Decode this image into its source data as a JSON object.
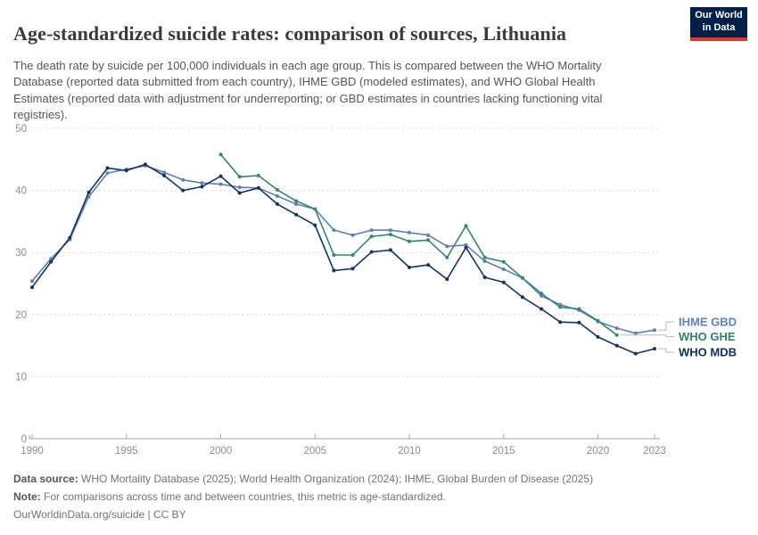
{
  "header": {
    "title": "Age-standardized suicide rates: comparison of sources, Lithuania",
    "subtitle": "The death rate by suicide per 100,000 individuals in each age group. This is compared between the WHO Mortality Database (reported data submitted from each country), IHME GBD (modeled estimates), and WHO Global Health Estimates (reported data with adjustment for underreporting; or GBD estimates in countries lacking functioning vital registries).",
    "logo": {
      "line1": "Our World",
      "line2": "in Data",
      "bg_color": "#002147",
      "accent_color": "#d93a2c"
    }
  },
  "footer": {
    "source_label": "Data source:",
    "source_text": " WHO Mortality Database (2025); World Health Organization (2024); IHME, Global Burden of Disease (2025)",
    "note_label": "Note:",
    "note_text": " For comparisons across time and between countries, this metric is age-standardized.",
    "link_text": "OurWorldinData.org/suicide | CC BY"
  },
  "chart_data": {
    "type": "line",
    "title": "Age-standardized suicide rates: comparison of sources, Lithuania",
    "xlabel": "",
    "ylabel": "Death rate by suicide per 100,000 individuals",
    "x_range": [
      1990,
      2023
    ],
    "x_interval": 1,
    "ylim": [
      0,
      50
    ],
    "yticks": [
      0,
      10,
      20,
      30,
      40,
      50
    ],
    "xticks": [
      1990,
      1995,
      2000,
      2005,
      2010,
      2015,
      2020,
      2023
    ],
    "grid": "dashed horizontal gridlines, legend at right line-ends",
    "series": [
      {
        "name": "IHME GBD",
        "color": "#5e7fba",
        "start_year": 1990,
        "values": [
          25.4,
          29.0,
          32.1,
          39.0,
          42.8,
          43.4,
          44.0,
          42.9,
          41.7,
          41.2,
          41.0,
          40.5,
          40.4,
          39.1,
          37.8,
          37.0,
          33.6,
          32.8,
          33.6,
          33.6,
          33.2,
          32.8,
          31.0,
          31.2,
          28.6,
          27.3,
          25.9,
          23.0,
          21.6,
          20.7,
          18.9,
          17.8,
          17.0,
          17.5
        ]
      },
      {
        "name": "WHO GHE",
        "color": "#2f8a6b",
        "start_year": 2000,
        "values": [
          45.8,
          42.2,
          42.4,
          40.1,
          38.3,
          37.0,
          29.6,
          29.6,
          32.6,
          32.9,
          31.8,
          32.0,
          29.2,
          34.3,
          29.2,
          28.5,
          25.9,
          23.4,
          21.2,
          20.9,
          19.0,
          16.7
        ]
      },
      {
        "name": "WHO MDB",
        "color": "#14335f",
        "start_year": 1990,
        "values": [
          24.4,
          28.5,
          32.4,
          39.7,
          43.6,
          43.2,
          44.2,
          42.4,
          40.0,
          40.6,
          42.3,
          39.6,
          40.4,
          37.8,
          36.1,
          34.4,
          27.1,
          27.4,
          30.1,
          30.4,
          27.6,
          28.0,
          25.7,
          30.8,
          26.0,
          25.2,
          22.8,
          20.9,
          18.8,
          18.7,
          16.4,
          15.0,
          13.7,
          14.5
        ]
      }
    ],
    "legend": [
      {
        "label": "IHME GBD",
        "color": "#6080bd",
        "series": "IHME GBD",
        "label_center_y": 231
      },
      {
        "label": "WHO GHE",
        "color": "#2c8465",
        "series": "WHO GHE",
        "label_center_y": 247.5
      },
      {
        "label": "WHO MDB",
        "color": "#0b2e5a",
        "series": "WHO MDB",
        "label_center_y": 265
      }
    ]
  }
}
